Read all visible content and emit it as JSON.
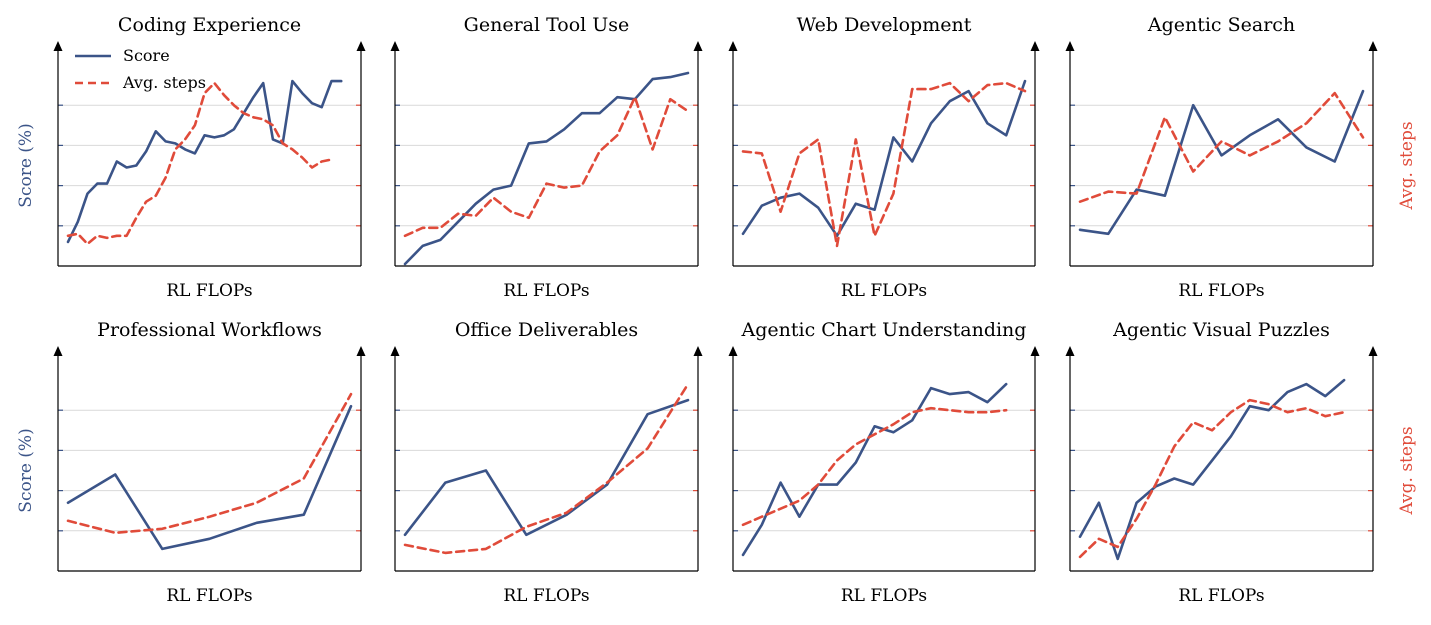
{
  "colors": {
    "score": "#3b5488",
    "steps": "#e04b3a",
    "grid": "#d9d9d9",
    "axis": "#000000"
  },
  "legend": {
    "score_label": "Score",
    "steps_label": "Avg. steps",
    "placement": "top-left"
  },
  "y_label_left": "Score (%)",
  "y_label_right": "Avg. steps",
  "chart_data": [
    {
      "type": "line",
      "title": "Coding Experience",
      "xlabel": "RL FLOPs",
      "ylim": [
        0,
        100
      ],
      "y2lim": [
        0,
        100
      ],
      "x": [
        1,
        2,
        3,
        4,
        5,
        6,
        7,
        8,
        9,
        10,
        11,
        12,
        13,
        14,
        15,
        16,
        17,
        18,
        19,
        20,
        21,
        22,
        23,
        24,
        25,
        26,
        27,
        28,
        29,
        30
      ],
      "series": [
        {
          "name": "Score",
          "values": [
            12,
            22,
            36,
            41,
            41,
            52,
            49,
            50,
            57,
            67,
            62,
            61,
            58,
            56,
            65,
            64,
            65,
            68,
            76,
            84,
            91,
            63,
            61,
            92,
            86,
            81,
            79,
            92,
            92,
            null
          ]
        },
        {
          "name": "Avg. steps",
          "values": [
            15,
            16,
            11,
            15,
            14,
            15,
            15,
            24,
            32,
            35,
            44,
            58,
            63,
            70,
            86,
            91,
            85,
            80,
            76,
            74,
            73,
            70,
            61,
            58,
            54,
            49,
            52,
            53,
            null,
            null
          ]
        }
      ]
    },
    {
      "type": "line",
      "title": "General Tool Use",
      "xlabel": "RL FLOPs",
      "ylim": [
        0,
        100
      ],
      "y2lim": [
        0,
        100
      ],
      "x": [
        1,
        2,
        3,
        4,
        5,
        6,
        7,
        8,
        9,
        10,
        11,
        12,
        13,
        14,
        15,
        16,
        17
      ],
      "series": [
        {
          "name": "Score",
          "values": [
            1,
            10,
            13,
            22,
            31,
            38,
            40,
            61,
            62,
            68,
            76,
            76,
            84,
            83,
            93,
            94,
            96
          ]
        },
        {
          "name": "Avg. steps",
          "values": [
            15,
            19,
            19,
            26,
            25,
            34,
            27,
            24,
            41,
            39,
            40,
            57,
            65,
            84,
            58,
            83,
            77
          ]
        }
      ]
    },
    {
      "type": "line",
      "title": "Web Development",
      "xlabel": "RL FLOPs",
      "ylim": [
        0,
        100
      ],
      "y2lim": [
        0,
        100
      ],
      "x": [
        1,
        2,
        3,
        4,
        5,
        6,
        7,
        8,
        9,
        10,
        11,
        12,
        13,
        14,
        15,
        16
      ],
      "series": [
        {
          "name": "Score",
          "values": [
            16,
            30,
            34,
            36,
            29,
            15,
            31,
            28,
            64,
            52,
            71,
            82,
            87,
            71,
            65,
            92
          ]
        },
        {
          "name": "Avg. steps",
          "values": [
            57,
            56,
            27,
            56,
            63,
            10,
            63,
            15,
            36,
            88,
            88,
            91,
            82,
            90,
            91,
            87
          ]
        }
      ]
    },
    {
      "type": "line",
      "title": "Agentic Search",
      "xlabel": "RL FLOPs",
      "ylim": [
        0,
        100
      ],
      "y2lim": [
        0,
        100
      ],
      "x": [
        1,
        2,
        3,
        4,
        5,
        6,
        7,
        8,
        9,
        10,
        11
      ],
      "series": [
        {
          "name": "Score",
          "values": [
            18,
            16,
            38,
            35,
            80,
            55,
            65,
            73,
            59,
            52,
            87
          ]
        },
        {
          "name": "Avg. steps",
          "values": [
            32,
            37,
            36,
            74,
            47,
            62,
            55,
            62,
            71,
            86,
            64
          ]
        }
      ]
    },
    {
      "type": "line",
      "title": "Professional Workflows",
      "xlabel": "RL FLOPs",
      "ylim": [
        0,
        100
      ],
      "y2lim": [
        0,
        100
      ],
      "x": [
        1,
        2,
        3,
        4,
        5,
        6,
        7
      ],
      "series": [
        {
          "name": "Score",
          "values": [
            34,
            48,
            11,
            16,
            24,
            28,
            82
          ]
        },
        {
          "name": "Avg. steps",
          "values": [
            25,
            19,
            21,
            27,
            34,
            46,
            88
          ]
        }
      ]
    },
    {
      "type": "line",
      "title": "Office Deliverables",
      "xlabel": "RL FLOPs",
      "ylim": [
        0,
        100
      ],
      "y2lim": [
        0,
        100
      ],
      "x": [
        1,
        2,
        3,
        4,
        5,
        6,
        7,
        8
      ],
      "series": [
        {
          "name": "Score",
          "values": [
            18,
            44,
            50,
            18,
            28,
            43,
            78,
            85
          ]
        },
        {
          "name": "Avg. steps",
          "values": [
            13,
            9,
            11,
            22,
            29,
            44,
            61,
            93
          ]
        }
      ]
    },
    {
      "type": "line",
      "title": "Agentic Chart Understanding",
      "xlabel": "RL FLOPs",
      "ylim": [
        0,
        100
      ],
      "y2lim": [
        0,
        100
      ],
      "x": [
        1,
        2,
        3,
        4,
        5,
        6,
        7,
        8,
        9,
        10,
        11,
        12,
        13,
        14,
        15,
        16
      ],
      "series": [
        {
          "name": "Score",
          "values": [
            8,
            23,
            44,
            27,
            43,
            43,
            54,
            72,
            69,
            75,
            91,
            88,
            89,
            84,
            93,
            null
          ]
        },
        {
          "name": "Avg. steps",
          "values": [
            23,
            27,
            31,
            35,
            43,
            55,
            63,
            68,
            73,
            79,
            81,
            80,
            79,
            79,
            80,
            null
          ]
        }
      ]
    },
    {
      "type": "line",
      "title": "Agentic Visual Puzzles",
      "xlabel": "RL FLOPs",
      "ylim": [
        0,
        100
      ],
      "y2lim": [
        0,
        100
      ],
      "x": [
        1,
        2,
        3,
        4,
        5,
        6,
        7,
        8,
        9,
        10,
        11,
        12,
        13,
        14,
        15,
        16
      ],
      "series": [
        {
          "name": "Score",
          "values": [
            17,
            34,
            6,
            34,
            42,
            46,
            43,
            55,
            67,
            82,
            80,
            89,
            93,
            87,
            95,
            null
          ]
        },
        {
          "name": "Avg. steps",
          "values": [
            7,
            16,
            12,
            26,
            43,
            62,
            74,
            70,
            79,
            85,
            83,
            79,
            81,
            77,
            79,
            null
          ]
        }
      ]
    }
  ]
}
